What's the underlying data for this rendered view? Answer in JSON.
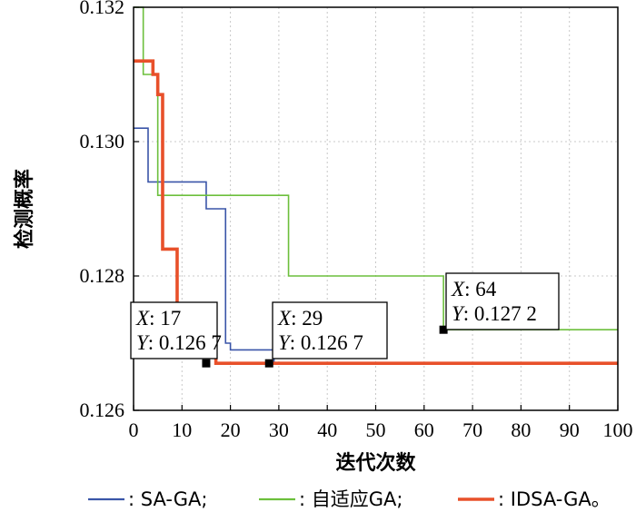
{
  "chart_data": {
    "type": "line",
    "title": "",
    "xlabel": "迭代次数",
    "ylabel": "检测概率",
    "xlim": [
      0,
      100
    ],
    "ylim": [
      0.126,
      0.132
    ],
    "xticks": [
      0,
      10,
      20,
      30,
      40,
      50,
      60,
      70,
      80,
      90,
      100
    ],
    "yticks": [
      0.126,
      0.128,
      0.13,
      0.132
    ],
    "xtick_labels": [
      "0",
      "10",
      "20",
      "30",
      "40",
      "50",
      "60",
      "70",
      "80",
      "90",
      "100"
    ],
    "ytick_labels": [
      "0.126",
      "0.128",
      "0.130",
      "0.132"
    ],
    "grid": true,
    "legend_position": "bottom",
    "series": [
      {
        "name": "SA-GA;",
        "legend_label": ": SA-GA;",
        "color": "#3a55a8",
        "step": true,
        "x": [
          0,
          2,
          3,
          14,
          15,
          18,
          19,
          20,
          28,
          29,
          100
        ],
        "y": [
          0.1302,
          0.1302,
          0.1294,
          0.1294,
          0.129,
          0.129,
          0.127,
          0.1269,
          0.1269,
          0.1267,
          0.1267
        ]
      },
      {
        "name": "自适应GA;",
        "legend_label": ": 自适应GA;",
        "color": "#6cbf3c",
        "step": true,
        "x": [
          0,
          1,
          2,
          4,
          5,
          31,
          32,
          64,
          100
        ],
        "y": [
          0.132,
          0.132,
          0.131,
          0.131,
          0.1292,
          0.1292,
          0.128,
          0.1272,
          0.1272
        ]
      },
      {
        "name": "IDSA-GA。",
        "legend_label": ": IDSA-GA。",
        "color": "#e8502a",
        "step": true,
        "x": [
          0,
          3,
          4,
          5,
          6,
          7,
          9,
          10,
          17,
          100
        ],
        "y": [
          0.1312,
          0.1312,
          0.131,
          0.1307,
          0.1284,
          0.1284,
          0.1275,
          0.127,
          0.1267,
          0.1267
        ]
      }
    ],
    "datatips": [
      {
        "x_label": "X",
        "x_value": ": 17",
        "y_label": "Y",
        "y_value": ": 0.126 7",
        "x": 15,
        "y": 0.1267
      },
      {
        "x_label": "X",
        "x_value": ": 29",
        "y_label": "Y",
        "y_value": ": 0.126 7",
        "x": 28,
        "y": 0.1267
      },
      {
        "x_label": "X",
        "x_value": ": 64",
        "y_label": "Y",
        "y_value": ": 0.127 2",
        "x": 64,
        "y": 0.1272
      }
    ]
  }
}
